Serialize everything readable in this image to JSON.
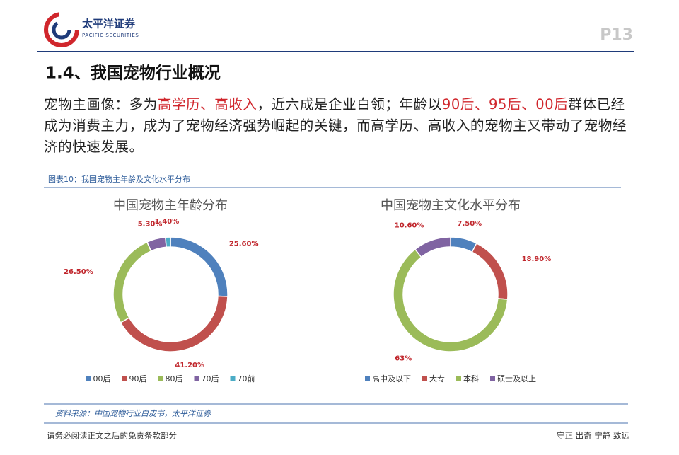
{
  "header": {
    "brand": "太平洋证券",
    "brand_en": "PACIFIC SECURITIES",
    "page": "P13"
  },
  "section_title": "1.4、我国宠物行业概况",
  "body": [
    {
      "text": "宠物主画像：多为",
      "highlight": false
    },
    {
      "text": "高学历、高收入",
      "highlight": true
    },
    {
      "text": "，近六成是企业白领；年龄以",
      "highlight": false
    },
    {
      "text": "90后、95后、00后",
      "highlight": true
    },
    {
      "text": "群体已经成为消费主力，成为了宠物经济强势崛起的关键，而高学历、高收入的宠物主又带动了宠物经济的快速发展。",
      "highlight": false
    }
  ],
  "figure_caption": "图表10：我国宠物主年龄及文化水平分布",
  "chart_data": [
    {
      "type": "pie",
      "donut": true,
      "title": "中国宠物主年龄分布",
      "categories": [
        "00后",
        "90后",
        "80后",
        "70后",
        "70前"
      ],
      "values": [
        25.6,
        41.2,
        26.5,
        5.3,
        1.4
      ],
      "value_labels": [
        "25.60%",
        "41.20%",
        "26.50%",
        "5.30%",
        "1.40%"
      ],
      "colors": [
        "#4f81bd",
        "#c0504d",
        "#9bbb59",
        "#8064a2",
        "#4bacc6"
      ],
      "legend": "bottom"
    },
    {
      "type": "pie",
      "donut": true,
      "title": "中国宠物主文化水平分布",
      "categories": [
        "高中及以下",
        "大专",
        "本科",
        "硕士及以上"
      ],
      "values": [
        7.5,
        18.9,
        63,
        10.6
      ],
      "value_labels": [
        "7.50%",
        "18.90%",
        "63%",
        "10.60%"
      ],
      "colors": [
        "#4f81bd",
        "#c0504d",
        "#9bbb59",
        "#8064a2"
      ],
      "legend": "bottom"
    }
  ],
  "source": "资料来源：中国宠物行业白皮书，太平洋证券",
  "footer": {
    "left": "请务必阅读正文之后的免责条款部分",
    "right": "守正 出奇 宁静 致远"
  }
}
